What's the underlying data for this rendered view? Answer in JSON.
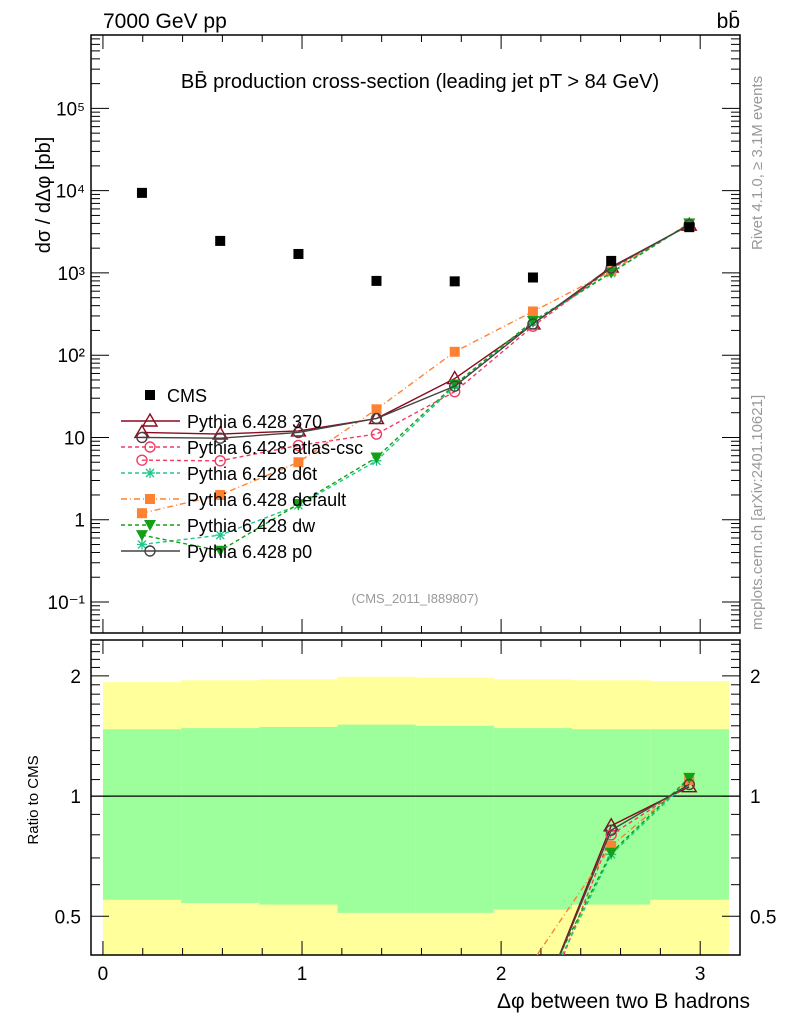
{
  "header": {
    "energy_label": "7000 GeV pp",
    "process_label": "bb̄"
  },
  "side_labels": {
    "rivet": "Rivet 4.1.0, ≥ 3.1M events",
    "mcplots": "mcplots.cern.ch [arXiv:2401.10621]"
  },
  "analysis_id": "(CMS_2011_I889807)",
  "colors": {
    "data": "#000000",
    "band_inner": "#9cff9c",
    "band_outer": "#ffff9c"
  },
  "chart_data": [
    {
      "type": "line",
      "title": "BB̄ production cross-section (leading jet pT > 84 GeV)",
      "ylabel": "dσ / dΔφ [pb]",
      "xlabel": "",
      "yscale": "log",
      "xlim": [
        -0.06,
        3.2
      ],
      "ylim": [
        0.042,
        780000
      ],
      "yticks": [
        {
          "v": 0.1,
          "label": "10⁻¹"
        },
        {
          "v": 1,
          "label": "1"
        },
        {
          "v": 10,
          "label": "10"
        },
        {
          "v": 100,
          "label": "10²"
        },
        {
          "v": 1000,
          "label": "10³"
        },
        {
          "v": 10000,
          "label": "10⁴"
        },
        {
          "v": 100000,
          "label": "10⁵"
        }
      ],
      "legend_position": "center-left",
      "x": [
        0.196,
        0.589,
        0.982,
        1.374,
        1.767,
        2.16,
        2.553,
        2.945
      ],
      "data": {
        "name": "CMS",
        "values": [
          9400,
          2450,
          1700,
          800,
          790,
          880,
          1400,
          3600
        ]
      },
      "series": [
        {
          "name": "Pythia 6.428 370",
          "color": "#8b0a1e",
          "dash": "",
          "marker": "triangle-open",
          "values": [
            11.5,
            11,
            12,
            17,
            52,
            240,
            1180,
            3800
          ]
        },
        {
          "name": "Pythia 6.428 atlas-csc",
          "color": "#f03c64",
          "dash": "4,3",
          "marker": "circle-open",
          "values": [
            5.3,
            5.2,
            8,
            11,
            36,
            225,
            1120,
            3850
          ]
        },
        {
          "name": "Pythia 6.428 d6t",
          "color": "#1ec88c",
          "dash": "4,3",
          "marker": "star",
          "values": [
            0.5,
            0.65,
            1.5,
            5.2,
            42,
            250,
            1000,
            3950
          ]
        },
        {
          "name": "Pythia 6.428 default",
          "color": "#ff8232",
          "dash": "6,3,1,3",
          "marker": "square",
          "values": [
            1.2,
            2,
            5,
            22,
            110,
            340,
            1050,
            3950
          ]
        },
        {
          "name": "Pythia 6.428 dw",
          "color": "#14a014",
          "dash": "4,3",
          "marker": "triangle-down",
          "values": [
            0.65,
            0.42,
            1.55,
            5.7,
            44,
            260,
            1010,
            4000
          ]
        },
        {
          "name": "Pythia 6.428 p0",
          "color": "#444444",
          "dash": "",
          "marker": "circle-open",
          "values": [
            10,
            9.8,
            11.5,
            17,
            42,
            240,
            1150,
            3850
          ]
        }
      ]
    },
    {
      "type": "line",
      "title": "",
      "ylabel": "Ratio to CMS",
      "xlabel": "Δφ between two B hadrons",
      "yscale": "log",
      "xlim": [
        -0.06,
        3.2
      ],
      "ylim": [
        0.4,
        2.46
      ],
      "yticks": [
        {
          "v": 0.5,
          "label": "0.5"
        },
        {
          "v": 1,
          "label": "1"
        },
        {
          "v": 2,
          "label": "2"
        }
      ],
      "xticks": [
        {
          "v": 0,
          "label": "0"
        },
        {
          "v": 1,
          "label": "1"
        },
        {
          "v": 2,
          "label": "2"
        },
        {
          "v": 3,
          "label": "3"
        }
      ],
      "bin_edges": [
        0,
        0.393,
        0.785,
        1.178,
        1.571,
        1.963,
        2.356,
        2.749,
        3.142
      ],
      "band_outer_hi": [
        1.93,
        1.95,
        1.96,
        1.99,
        1.98,
        1.96,
        1.95,
        1.94
      ],
      "band_outer_lo": [
        0.3,
        0.3,
        0.3,
        0.3,
        0.3,
        0.3,
        0.3,
        0.3
      ],
      "band_inner_hi": [
        1.47,
        1.48,
        1.49,
        1.51,
        1.5,
        1.48,
        1.47,
        1.47
      ],
      "band_inner_lo": [
        0.55,
        0.54,
        0.535,
        0.51,
        0.51,
        0.52,
        0.535,
        0.55
      ]
    }
  ]
}
